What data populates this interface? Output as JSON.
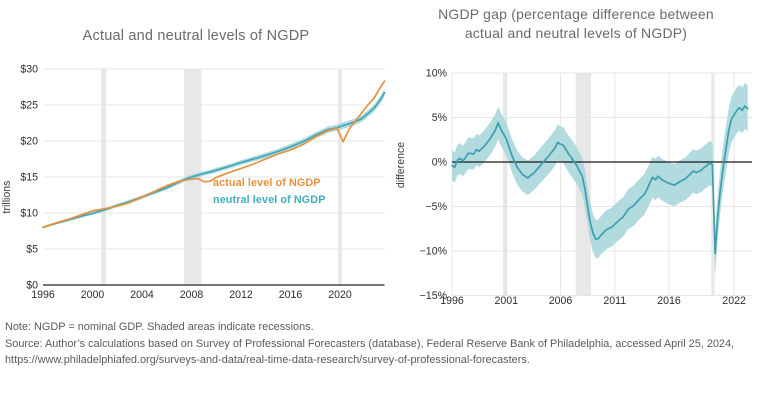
{
  "notes": {
    "note": "Note: NGDP = nominal GDP. Shaded areas indicate recessions.",
    "source": "Source: Author’s calculations based on Survey of Professional Forecasters (database), Federal Reserve Bank of Philadelphia, accessed April 25, 2024, https://www.philadelphiafed.org/surveys-and-data/real-time-data-research/survey-of-professional-forecasters."
  },
  "colors": {
    "actual_line": "#E8913C",
    "neutral_line": "#3FA8B8",
    "gap_line": "#3C9FAE",
    "band": "#A9D7DC",
    "recession": "#E2E2E2",
    "gridline": "#E7E7E7",
    "zero_line": "#1A1A1A",
    "axis": "#47484A",
    "title_text": "#696A6E",
    "tick_text": "#2E2E30",
    "note_text": "#5A5B5E"
  },
  "chart_data": [
    {
      "type": "line",
      "title": "Actual and neutral levels of NGDP",
      "ylabel": "trillions",
      "xlim": [
        1996,
        2023.6
      ],
      "ylim": [
        0,
        30
      ],
      "grid": "h",
      "legend_position": "inside-middle",
      "x_tick_values": [
        1996,
        2000,
        2004,
        2008,
        2012,
        2016,
        2020
      ],
      "x_tick_labels": [
        "1996",
        "2000",
        "2004",
        "2008",
        "2012",
        "2016",
        "2020"
      ],
      "y_tick_values": [
        0,
        5,
        10,
        15,
        20,
        25,
        30
      ],
      "y_tick_labels": [
        "$0",
        "$5",
        "$10",
        "$15",
        "$20",
        "$25",
        "$30"
      ],
      "recessions": [
        [
          2000.7,
          2001.1
        ],
        [
          2007.4,
          2008.8
        ],
        [
          2019.85,
          2020.15
        ]
      ],
      "x": [
        1996,
        1997,
        1998,
        1999,
        2000,
        2001,
        2002,
        2003,
        2004,
        2005,
        2006,
        2007,
        2007.5,
        2008,
        2008.5,
        2009,
        2009.5,
        2010,
        2011,
        2012,
        2013,
        2014,
        2015,
        2016,
        2017,
        2018,
        2019,
        2019.75,
        2020.25,
        2020.75,
        2021.25,
        2021.75,
        2022.25,
        2022.75,
        2023.25,
        2023.6
      ],
      "series": [
        {
          "name": "neutral level of NGDP",
          "color": "#3FA8B8",
          "legend_color": "#3EAEC0",
          "values": [
            8.0,
            8.55,
            9.0,
            9.5,
            9.95,
            10.45,
            11.05,
            11.6,
            12.2,
            12.85,
            13.5,
            14.3,
            14.7,
            15.0,
            15.25,
            15.5,
            15.7,
            15.95,
            16.45,
            17.0,
            17.5,
            18.0,
            18.55,
            19.2,
            19.9,
            20.8,
            21.55,
            21.85,
            22.15,
            22.4,
            22.7,
            23.1,
            23.8,
            24.55,
            25.7,
            26.7
          ],
          "band": {
            "type": "relative",
            "halfwidth": 0.02,
            "color": "#A9D7DC"
          }
        },
        {
          "name": "actual level of NGDP",
          "color": "#E8913C",
          "legend_color": "#E8913C",
          "values": [
            8.0,
            8.6,
            9.1,
            9.7,
            10.3,
            10.6,
            10.95,
            11.45,
            12.2,
            13.0,
            13.8,
            14.4,
            14.6,
            14.7,
            14.8,
            14.35,
            14.4,
            14.95,
            15.6,
            16.2,
            16.8,
            17.5,
            18.2,
            18.75,
            19.5,
            20.55,
            21.4,
            21.8,
            19.9,
            21.7,
            22.8,
            23.9,
            25.0,
            25.95,
            27.4,
            28.3
          ]
        }
      ]
    },
    {
      "type": "line",
      "title": "NGDP gap (percentage difference between actual and neutral levels of NGDP)",
      "title_lines": [
        "NGDP gap (percentage difference between",
        "actual and neutral levels of NGDP)"
      ],
      "ylabel": "difference",
      "xlim": [
        1996,
        2023.3
      ],
      "ylim": [
        -15,
        10
      ],
      "grid": "hv",
      "zero_line": true,
      "x_tick_values": [
        1996,
        2001,
        2006,
        2011,
        2016,
        2022
      ],
      "x_tick_labels": [
        "1996",
        "2001",
        "2006",
        "2011",
        "2016",
        "2022"
      ],
      "y_tick_values": [
        10,
        5,
        0,
        -5,
        -10,
        -15
      ],
      "y_tick_labels": [
        "10%",
        "5%",
        "0%",
        "−5%",
        "−10%",
        "−15%"
      ],
      "recessions": [
        [
          2000.7,
          2001.1
        ],
        [
          2007.4,
          2008.8
        ],
        [
          2019.9,
          2020.2
        ]
      ],
      "x": [
        1996,
        1996.25,
        1996.5,
        1996.75,
        1997,
        1997.25,
        1997.5,
        1998,
        1998.25,
        1998.5,
        1999,
        1999.25,
        1999.5,
        2000,
        2000.25,
        2000.5,
        2001,
        2001.5,
        2002,
        2002.5,
        2003,
        2003.25,
        2003.5,
        2004,
        2004.5,
        2005,
        2005.5,
        2005.75,
        2006,
        2006.25,
        2006.75,
        2007,
        2007.5,
        2008,
        2008.25,
        2008.5,
        2008.75,
        2009,
        2009.25,
        2009.5,
        2009.75,
        2010.25,
        2010.75,
        2011.25,
        2011.75,
        2012.25,
        2012.75,
        2013.25,
        2013.75,
        2014,
        2014.25,
        2014.5,
        2014.75,
        2015,
        2015.25,
        2015.5,
        2016,
        2016.5,
        2017,
        2017.5,
        2018,
        2018.25,
        2018.5,
        2019,
        2019.25,
        2019.5,
        2019.75,
        2020,
        2020.25,
        2020.5,
        2020.75,
        2021,
        2021.25,
        2021.5,
        2021.75,
        2022,
        2022.25,
        2022.5,
        2022.75,
        2023,
        2023.25
      ],
      "series": [
        {
          "name": "NGDP gap",
          "color": "#3C9FAE",
          "values": [
            -0.4,
            -0.6,
            0.2,
            0.4,
            0.1,
            0.5,
            1.0,
            0.9,
            1.4,
            1.2,
            1.8,
            2.2,
            2.6,
            3.6,
            4.4,
            3.7,
            2.6,
            0.8,
            -0.6,
            -1.4,
            -1.8,
            -1.5,
            -1.3,
            -0.6,
            0.1,
            0.8,
            1.6,
            2.2,
            2.0,
            1.9,
            0.9,
            0.5,
            -0.4,
            -1.6,
            -3.0,
            -5.0,
            -6.8,
            -8.0,
            -8.7,
            -8.6,
            -8.2,
            -7.6,
            -7.3,
            -6.7,
            -6.2,
            -5.3,
            -4.9,
            -4.2,
            -3.6,
            -3.0,
            -2.3,
            -1.7,
            -2.0,
            -1.6,
            -1.9,
            -2.1,
            -2.4,
            -2.6,
            -2.2,
            -1.9,
            -1.3,
            -1.0,
            -1.2,
            -0.9,
            -0.6,
            -0.4,
            -0.1,
            -0.3,
            -10.3,
            -6.0,
            -3.0,
            -0.5,
            1.5,
            3.5,
            4.8,
            5.3,
            5.8,
            6.1,
            5.8,
            6.3,
            6.0
          ],
          "band": {
            "type": "linear",
            "halfwidth_start": 1.7,
            "halfwidth_end": 2.6,
            "color": "#A9D7DC"
          }
        }
      ]
    }
  ]
}
